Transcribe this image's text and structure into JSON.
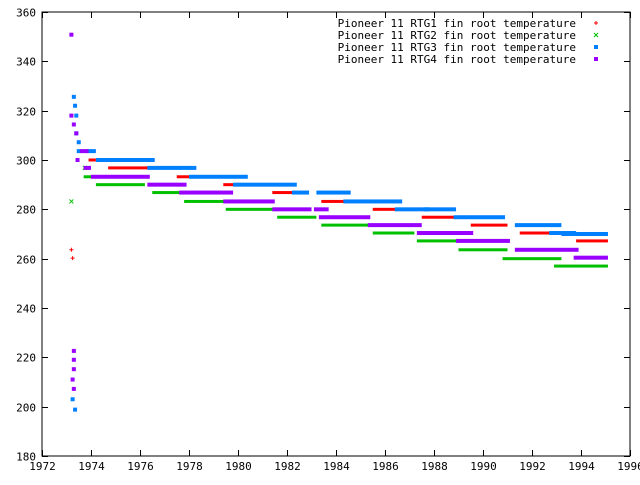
{
  "chart_data": {
    "type": "scatter",
    "title": "",
    "xlabel": "",
    "ylabel": "",
    "xlim": [
      1972,
      1996
    ],
    "ylim": [
      180,
      360
    ],
    "xticks": [
      1972,
      1974,
      1976,
      1978,
      1980,
      1982,
      1984,
      1986,
      1988,
      1990,
      1992,
      1994,
      1996
    ],
    "yticks": [
      180,
      200,
      220,
      240,
      260,
      280,
      300,
      320,
      340,
      360
    ],
    "grid": false,
    "legend_position": "top-right",
    "series": [
      {
        "name": "Pioneer 11 RTG1 fin root temperature",
        "color": "#ff0000",
        "marker": "plus",
        "points": [
          [
            1973.2,
            263.6
          ],
          [
            1973.25,
            260.2
          ]
        ],
        "segments": [
          [
            1973.9,
            1974.2,
            300.0
          ],
          [
            1974.7,
            1976.5,
            296.8
          ],
          [
            1977.5,
            1978.1,
            293.2
          ],
          [
            1979.4,
            1980.1,
            290.0
          ],
          [
            1981.4,
            1982.4,
            286.8
          ],
          [
            1983.4,
            1984.7,
            283.2
          ],
          [
            1985.5,
            1986.5,
            280.0
          ],
          [
            1987.5,
            1988.9,
            276.8
          ],
          [
            1989.5,
            1991.0,
            273.6
          ],
          [
            1991.5,
            1993.3,
            270.4
          ],
          [
            1993.8,
            1995.1,
            267.2
          ]
        ]
      },
      {
        "name": "Pioneer 11 RTG2 fin root temperature",
        "color": "#00c000",
        "marker": "cross",
        "points": [
          [
            1973.2,
            283.2
          ],
          [
            1973.75,
            296.8
          ]
        ],
        "segments": [
          [
            1973.7,
            1974.2,
            293.2
          ],
          [
            1974.2,
            1976.2,
            290.0
          ],
          [
            1976.5,
            1977.8,
            286.8
          ],
          [
            1977.8,
            1979.8,
            283.2
          ],
          [
            1979.5,
            1981.6,
            280.0
          ],
          [
            1981.6,
            1983.2,
            276.8
          ],
          [
            1983.4,
            1985.5,
            273.6
          ],
          [
            1985.5,
            1987.2,
            270.4
          ],
          [
            1987.3,
            1989.0,
            267.2
          ],
          [
            1989.0,
            1991.0,
            263.6
          ],
          [
            1990.8,
            1993.2,
            260.0
          ],
          [
            1992.9,
            1995.1,
            257.0
          ]
        ]
      },
      {
        "name": "Pioneer 11 RTG3 fin root temperature",
        "color": "#0080ff",
        "marker": "square",
        "points": [
          [
            1973.3,
            325.6
          ],
          [
            1973.35,
            322.0
          ],
          [
            1973.4,
            318.0
          ],
          [
            1973.4,
            310.8
          ],
          [
            1973.5,
            307.2
          ],
          [
            1973.5,
            303.6
          ],
          [
            1973.25,
            203.0
          ],
          [
            1973.35,
            198.8
          ]
        ],
        "segments": [
          [
            1973.8,
            1974.2,
            303.6
          ],
          [
            1974.2,
            1976.6,
            300.0
          ],
          [
            1976.3,
            1978.3,
            296.8
          ],
          [
            1978.0,
            1980.4,
            293.2
          ],
          [
            1979.8,
            1982.4,
            290.0
          ],
          [
            1982.2,
            1982.9,
            286.8
          ],
          [
            1983.2,
            1984.6,
            286.8
          ],
          [
            1984.3,
            1986.7,
            283.2
          ],
          [
            1986.4,
            1987.8,
            280.0
          ],
          [
            1987.6,
            1988.9,
            280.0
          ],
          [
            1988.8,
            1990.9,
            276.8
          ],
          [
            1991.3,
            1993.2,
            273.6
          ],
          [
            1992.7,
            1993.8,
            270.4
          ],
          [
            1993.2,
            1995.1,
            270.0
          ]
        ]
      },
      {
        "name": "Pioneer 11 RTG4 fin root temperature",
        "color": "#9900ff",
        "marker": "square",
        "points": [
          [
            1973.2,
            350.8
          ],
          [
            1973.2,
            318.0
          ],
          [
            1973.3,
            314.4
          ],
          [
            1973.4,
            310.8
          ],
          [
            1973.45,
            300.0
          ],
          [
            1973.3,
            222.6
          ],
          [
            1973.3,
            219.0
          ],
          [
            1973.3,
            215.2
          ],
          [
            1973.25,
            211.0
          ],
          [
            1973.3,
            207.2
          ]
        ],
        "segments": [
          [
            1973.55,
            1973.9,
            303.6
          ],
          [
            1973.7,
            1974.0,
            296.8
          ],
          [
            1974.0,
            1976.4,
            293.2
          ],
          [
            1976.3,
            1977.9,
            290.0
          ],
          [
            1977.6,
            1979.8,
            286.8
          ],
          [
            1979.4,
            1981.5,
            283.2
          ],
          [
            1981.4,
            1983.0,
            280.0
          ],
          [
            1983.1,
            1983.7,
            280.0
          ],
          [
            1983.3,
            1985.4,
            276.8
          ],
          [
            1985.3,
            1987.5,
            273.6
          ],
          [
            1987.3,
            1989.6,
            270.4
          ],
          [
            1988.9,
            1991.1,
            267.2
          ],
          [
            1991.3,
            1993.9,
            263.6
          ],
          [
            1993.7,
            1995.1,
            260.4
          ]
        ]
      }
    ]
  }
}
